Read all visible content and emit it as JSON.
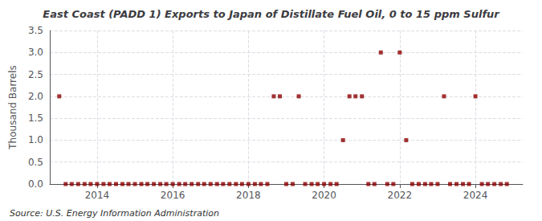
{
  "chart_data": {
    "type": "scatter",
    "title": "East Coast (PADD 1) Exports to Japan of Distillate Fuel Oil, 0 to 15 ppm Sulfur",
    "ylabel": "Thousand Barrels",
    "annotations": [
      "Source: U.S. Energy Information Administration"
    ],
    "x": [
      2013.0,
      2013.17,
      2013.33,
      2013.5,
      2013.67,
      2013.83,
      2014.0,
      2014.17,
      2014.33,
      2014.5,
      2014.67,
      2014.83,
      2015.0,
      2015.17,
      2015.33,
      2015.5,
      2015.67,
      2015.83,
      2016.0,
      2016.17,
      2016.33,
      2016.5,
      2016.67,
      2016.83,
      2017.0,
      2017.17,
      2017.33,
      2017.5,
      2017.67,
      2017.83,
      2018.0,
      2018.17,
      2018.33,
      2018.5,
      2018.67,
      2018.83,
      2019.0,
      2019.17,
      2019.33,
      2019.5,
      2019.67,
      2019.83,
      2020.0,
      2020.17,
      2020.33,
      2020.5,
      2020.67,
      2020.83,
      2021.0,
      2021.17,
      2021.33,
      2021.5,
      2021.67,
      2021.83,
      2022.0,
      2022.17,
      2022.33,
      2022.5,
      2022.67,
      2022.83,
      2023.0,
      2023.17,
      2023.33,
      2023.5,
      2023.67,
      2023.83,
      2024.0,
      2024.17,
      2024.33,
      2024.5,
      2024.67,
      2024.83
    ],
    "values": [
      2.0,
      0.0,
      0.0,
      0.0,
      0.0,
      0.0,
      0.0,
      0.0,
      0.0,
      0.0,
      0.0,
      0.0,
      0.0,
      0.0,
      0.0,
      0.0,
      0.0,
      0.0,
      0.0,
      0.0,
      0.0,
      0.0,
      0.0,
      0.0,
      0.0,
      0.0,
      0.0,
      0.0,
      0.0,
      0.0,
      0.0,
      0.0,
      0.0,
      0.0,
      2.0,
      2.0,
      0.0,
      0.0,
      2.0,
      0.0,
      0.0,
      0.0,
      0.0,
      0.0,
      0.0,
      1.0,
      2.0,
      2.0,
      2.0,
      0.0,
      0.0,
      3.0,
      0.0,
      0.0,
      3.0,
      1.0,
      0.0,
      0.0,
      0.0,
      0.0,
      0.0,
      2.0,
      0.0,
      0.0,
      0.0,
      0.0,
      2.0,
      0.0,
      0.0,
      0.0,
      0.0,
      0.0
    ],
    "color": "#8b0000",
    "marker": "square",
    "xlim": [
      2012.75,
      2025.25
    ],
    "xticks": [
      2014,
      2016,
      2018,
      2020,
      2022,
      2024
    ],
    "ylim": [
      0,
      3.5
    ],
    "yticks": [
      {
        "value": 0.0,
        "label": "0.0"
      },
      0.5,
      {
        "value": 1.0,
        "label": "1.0"
      },
      1.5,
      {
        "value": 2.0,
        "label": "2.0"
      },
      2.5,
      {
        "value": 3.0,
        "label": "3.0"
      },
      3.5
    ],
    "grid": true
  }
}
